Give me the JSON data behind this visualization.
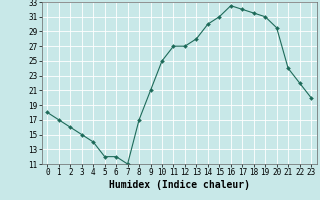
{
  "x": [
    0,
    1,
    2,
    3,
    4,
    5,
    6,
    7,
    8,
    9,
    10,
    11,
    12,
    13,
    14,
    15,
    16,
    17,
    18,
    19,
    20,
    21,
    22,
    23
  ],
  "y": [
    18,
    17,
    16,
    15,
    14,
    12,
    12,
    11,
    17,
    21,
    25,
    27,
    27,
    28,
    30,
    31,
    32.5,
    32,
    31.5,
    31,
    29.5,
    24,
    22,
    20
  ],
  "line_color": "#1e6b5a",
  "marker_color": "#1e6b5a",
  "bg_color": "#c8e8e8",
  "grid_color": "#ffffff",
  "xlabel": "Humidex (Indice chaleur)",
  "ylim": [
    11,
    33
  ],
  "yticks": [
    11,
    13,
    15,
    17,
    19,
    21,
    23,
    25,
    27,
    29,
    31,
    33
  ],
  "xlim": [
    -0.5,
    23.5
  ],
  "xticks": [
    0,
    1,
    2,
    3,
    4,
    5,
    6,
    7,
    8,
    9,
    10,
    11,
    12,
    13,
    14,
    15,
    16,
    17,
    18,
    19,
    20,
    21,
    22,
    23
  ],
  "xlabel_fontsize": 7,
  "tick_fontsize": 5.5
}
